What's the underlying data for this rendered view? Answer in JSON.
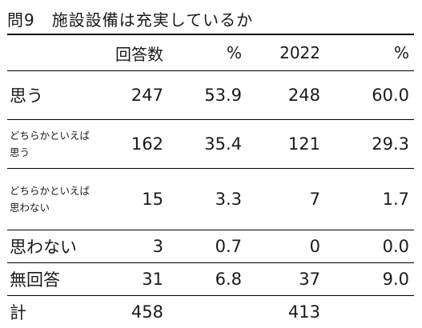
{
  "title": "問9　施設設備は充実しているか",
  "header": {
    "col_count": "回答数",
    "col_pct": "%",
    "col_prev_count": "2022",
    "col_prev_pct": "%"
  },
  "rows": [
    {
      "label": "思う",
      "count": "247",
      "pct": "53.9",
      "prev_count": "248",
      "prev_pct": "60.0"
    },
    {
      "label": "どちらかといえば思う",
      "count": "162",
      "pct": "35.4",
      "prev_count": "121",
      "prev_pct": "29.3"
    },
    {
      "label": "どちらかといえば思わない",
      "count": "15",
      "pct": "3.3",
      "prev_count": "7",
      "prev_pct": "1.7"
    },
    {
      "label": "思わない",
      "count": "3",
      "pct": "0.7",
      "prev_count": "0",
      "prev_pct": "0.0"
    },
    {
      "label": "無回答",
      "count": "31",
      "pct": "6.8",
      "prev_count": "37",
      "prev_pct": "9.0"
    },
    {
      "label": "計",
      "count": "458",
      "pct": "",
      "prev_count": "413",
      "prev_pct": ""
    }
  ]
}
